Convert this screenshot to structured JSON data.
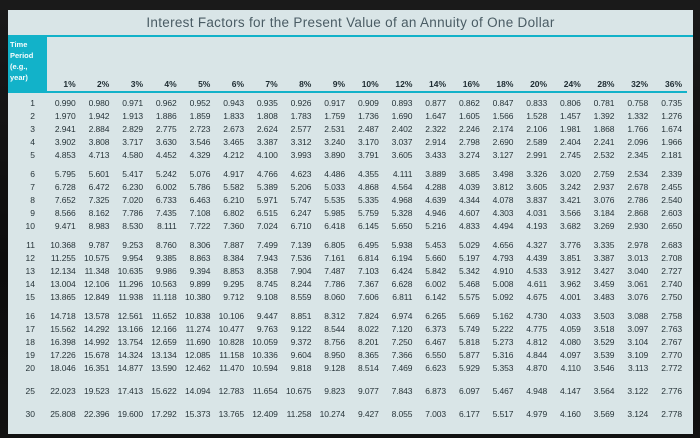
{
  "title": "Interest Factors for the Present Value of an Annuity of One Dollar",
  "colors": {
    "accent": "#12b2c9",
    "panel_bg": "#d9e5e7",
    "frame_bg": "#0d0d0d",
    "title_text": "#4a5c64",
    "header_text": "#1d2b31",
    "body_text": "#273439",
    "corner_text": "#f4fcfd"
  },
  "table": {
    "corner_header": "Time Period (e.g., year)",
    "corner_header_lines": [
      "Time",
      "Period",
      "(e.g.,",
      "year)"
    ],
    "rate_headers": [
      "1%",
      "2%",
      "3%",
      "4%",
      "5%",
      "6%",
      "7%",
      "8%",
      "9%",
      "10%",
      "12%",
      "14%",
      "16%",
      "18%",
      "20%",
      "24%",
      "28%",
      "32%",
      "36%"
    ],
    "row_groups": [
      {
        "gap": "none",
        "rows": [
          {
            "period": "1",
            "values": [
              "0.990",
              "0.980",
              "0.971",
              "0.962",
              "0.952",
              "0.943",
              "0.935",
              "0.926",
              "0.917",
              "0.909",
              "0.893",
              "0.877",
              "0.862",
              "0.847",
              "0.833",
              "0.806",
              "0.781",
              "0.758",
              "0.735"
            ]
          },
          {
            "period": "2",
            "values": [
              "1.970",
              "1.942",
              "1.913",
              "1.886",
              "1.859",
              "1.833",
              "1.808",
              "1.783",
              "1.759",
              "1.736",
              "1.690",
              "1.647",
              "1.605",
              "1.566",
              "1.528",
              "1.457",
              "1.392",
              "1.332",
              "1.276"
            ]
          },
          {
            "period": "3",
            "values": [
              "2.941",
              "2.884",
              "2.829",
              "2.775",
              "2.723",
              "2.673",
              "2.624",
              "2.577",
              "2.531",
              "2.487",
              "2.402",
              "2.322",
              "2.246",
              "2.174",
              "2.106",
              "1.981",
              "1.868",
              "1.766",
              "1.674"
            ]
          },
          {
            "period": "4",
            "values": [
              "3.902",
              "3.808",
              "3.717",
              "3.630",
              "3.546",
              "3.465",
              "3.387",
              "3.312",
              "3.240",
              "3.170",
              "3.037",
              "2.914",
              "2.798",
              "2.690",
              "2.589",
              "2.404",
              "2.241",
              "2.096",
              "1.966"
            ]
          },
          {
            "period": "5",
            "values": [
              "4.853",
              "4.713",
              "4.580",
              "4.452",
              "4.329",
              "4.212",
              "4.100",
              "3.993",
              "3.890",
              "3.791",
              "3.605",
              "3.433",
              "3.274",
              "3.127",
              "2.991",
              "2.745",
              "2.532",
              "2.345",
              "2.181"
            ]
          }
        ]
      },
      {
        "gap": "small",
        "rows": [
          {
            "period": "6",
            "values": [
              "5.795",
              "5.601",
              "5.417",
              "5.242",
              "5.076",
              "4.917",
              "4.766",
              "4.623",
              "4.486",
              "4.355",
              "4.111",
              "3.889",
              "3.685",
              "3.498",
              "3.326",
              "3.020",
              "2.759",
              "2.534",
              "2.339"
            ]
          },
          {
            "period": "7",
            "values": [
              "6.728",
              "6.472",
              "6.230",
              "6.002",
              "5.786",
              "5.582",
              "5.389",
              "5.206",
              "5.033",
              "4.868",
              "4.564",
              "4.288",
              "4.039",
              "3.812",
              "3.605",
              "3.242",
              "2.937",
              "2.678",
              "2.455"
            ]
          },
          {
            "period": "8",
            "values": [
              "7.652",
              "7.325",
              "7.020",
              "6.733",
              "6.463",
              "6.210",
              "5.971",
              "5.747",
              "5.535",
              "5.335",
              "4.968",
              "4.639",
              "4.344",
              "4.078",
              "3.837",
              "3.421",
              "3.076",
              "2.786",
              "2.540"
            ]
          },
          {
            "period": "9",
            "values": [
              "8.566",
              "8.162",
              "7.786",
              "7.435",
              "7.108",
              "6.802",
              "6.515",
              "6.247",
              "5.985",
              "5.759",
              "5.328",
              "4.946",
              "4.607",
              "4.303",
              "4.031",
              "3.566",
              "3.184",
              "2.868",
              "2.603"
            ]
          },
          {
            "period": "10",
            "values": [
              "9.471",
              "8.983",
              "8.530",
              "8.111",
              "7.722",
              "7.360",
              "7.024",
              "6.710",
              "6.418",
              "6.145",
              "5.650",
              "5.216",
              "4.833",
              "4.494",
              "4.193",
              "3.682",
              "3.269",
              "2.930",
              "2.650"
            ]
          }
        ]
      },
      {
        "gap": "small",
        "rows": [
          {
            "period": "11",
            "values": [
              "10.368",
              "9.787",
              "9.253",
              "8.760",
              "8.306",
              "7.887",
              "7.499",
              "7.139",
              "6.805",
              "6.495",
              "5.938",
              "5.453",
              "5.029",
              "4.656",
              "4.327",
              "3.776",
              "3.335",
              "2.978",
              "2.683"
            ]
          },
          {
            "period": "12",
            "values": [
              "11.255",
              "10.575",
              "9.954",
              "9.385",
              "8.863",
              "8.384",
              "7.943",
              "7.536",
              "7.161",
              "6.814",
              "6.194",
              "5.660",
              "5.197",
              "4.793",
              "4.439",
              "3.851",
              "3.387",
              "3.013",
              "2.708"
            ]
          },
          {
            "period": "13",
            "values": [
              "12.134",
              "11.348",
              "10.635",
              "9.986",
              "9.394",
              "8.853",
              "8.358",
              "7.904",
              "7.487",
              "7.103",
              "6.424",
              "5.842",
              "5.342",
              "4.910",
              "4.533",
              "3.912",
              "3.427",
              "3.040",
              "2.727"
            ]
          },
          {
            "period": "14",
            "values": [
              "13.004",
              "12.106",
              "11.296",
              "10.563",
              "9.899",
              "9.295",
              "8.745",
              "8.244",
              "7.786",
              "7.367",
              "6.628",
              "6.002",
              "5.468",
              "5.008",
              "4.611",
              "3.962",
              "3.459",
              "3.061",
              "2.740"
            ]
          },
          {
            "period": "15",
            "values": [
              "13.865",
              "12.849",
              "11.938",
              "11.118",
              "10.380",
              "9.712",
              "9.108",
              "8.559",
              "8.060",
              "7.606",
              "6.811",
              "6.142",
              "5.575",
              "5.092",
              "4.675",
              "4.001",
              "3.483",
              "3.076",
              "2.750"
            ]
          }
        ]
      },
      {
        "gap": "small",
        "rows": [
          {
            "period": "16",
            "values": [
              "14.718",
              "13.578",
              "12.561",
              "11.652",
              "10.838",
              "10.106",
              "9.447",
              "8.851",
              "8.312",
              "7.824",
              "6.974",
              "6.265",
              "5.669",
              "5.162",
              "4.730",
              "4.033",
              "3.503",
              "3.088",
              "2.758"
            ]
          },
          {
            "period": "17",
            "values": [
              "15.562",
              "14.292",
              "13.166",
              "12.166",
              "11.274",
              "10.477",
              "9.763",
              "9.122",
              "8.544",
              "8.022",
              "7.120",
              "6.373",
              "5.749",
              "5.222",
              "4.775",
              "4.059",
              "3.518",
              "3.097",
              "2.763"
            ]
          },
          {
            "period": "18",
            "values": [
              "16.398",
              "14.992",
              "13.754",
              "12.659",
              "11.690",
              "10.828",
              "10.059",
              "9.372",
              "8.756",
              "8.201",
              "7.250",
              "6.467",
              "5.818",
              "5.273",
              "4.812",
              "4.080",
              "3.529",
              "3.104",
              "2.767"
            ]
          },
          {
            "period": "19",
            "values": [
              "17.226",
              "15.678",
              "14.324",
              "13.134",
              "12.085",
              "11.158",
              "10.336",
              "9.604",
              "8.950",
              "8.365",
              "7.366",
              "6.550",
              "5.877",
              "5.316",
              "4.844",
              "4.097",
              "3.539",
              "3.109",
              "2.770"
            ]
          },
          {
            "period": "20",
            "values": [
              "18.046",
              "16.351",
              "14.877",
              "13.590",
              "12.462",
              "11.470",
              "10.594",
              "9.818",
              "9.128",
              "8.514",
              "7.469",
              "6.623",
              "5.929",
              "5.353",
              "4.870",
              "4.110",
              "3.546",
              "3.113",
              "2.772"
            ]
          }
        ]
      },
      {
        "gap": "large",
        "rows": [
          {
            "period": "25",
            "values": [
              "22.023",
              "19.523",
              "17.413",
              "15.622",
              "14.094",
              "12.783",
              "11.654",
              "10.675",
              "9.823",
              "9.077",
              "7.843",
              "6.873",
              "6.097",
              "5.467",
              "4.948",
              "4.147",
              "3.564",
              "3.122",
              "2.776"
            ]
          }
        ]
      },
      {
        "gap": "large",
        "rows": [
          {
            "period": "30",
            "values": [
              "25.808",
              "22.396",
              "19.600",
              "17.292",
              "15.373",
              "13.765",
              "12.409",
              "11.258",
              "10.274",
              "9.427",
              "8.055",
              "7.003",
              "6.177",
              "5.517",
              "4.979",
              "4.160",
              "3.569",
              "3.124",
              "2.778"
            ]
          }
        ]
      }
    ]
  }
}
